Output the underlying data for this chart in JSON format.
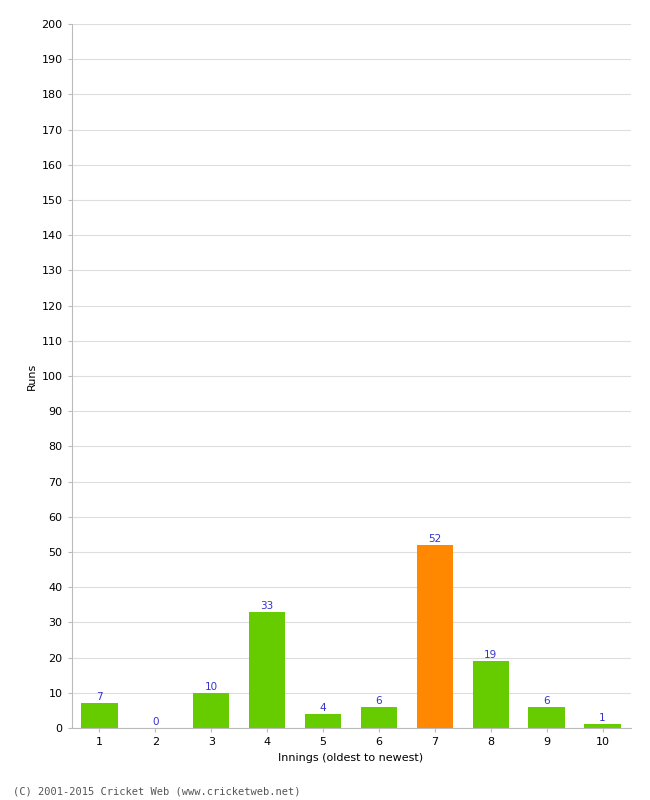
{
  "categories": [
    "1",
    "2",
    "3",
    "4",
    "5",
    "6",
    "7",
    "8",
    "9",
    "10"
  ],
  "values": [
    7,
    0,
    10,
    33,
    4,
    6,
    52,
    19,
    6,
    1
  ],
  "bar_colors": [
    "#66cc00",
    "#66cc00",
    "#66cc00",
    "#66cc00",
    "#66cc00",
    "#66cc00",
    "#ff8800",
    "#66cc00",
    "#66cc00",
    "#66cc00"
  ],
  "label_color": "#3333cc",
  "xlabel": "Innings (oldest to newest)",
  "ylabel": "Runs",
  "ylim": [
    0,
    200
  ],
  "yticks": [
    0,
    10,
    20,
    30,
    40,
    50,
    60,
    70,
    80,
    90,
    100,
    110,
    120,
    130,
    140,
    150,
    160,
    170,
    180,
    190,
    200
  ],
  "footer": "(C) 2001-2015 Cricket Web (www.cricketweb.net)",
  "background_color": "#ffffff",
  "grid_color": "#dddddd",
  "label_fontsize": 7.5,
  "axis_tick_fontsize": 8,
  "axis_label_fontsize": 8,
  "footer_fontsize": 7.5
}
